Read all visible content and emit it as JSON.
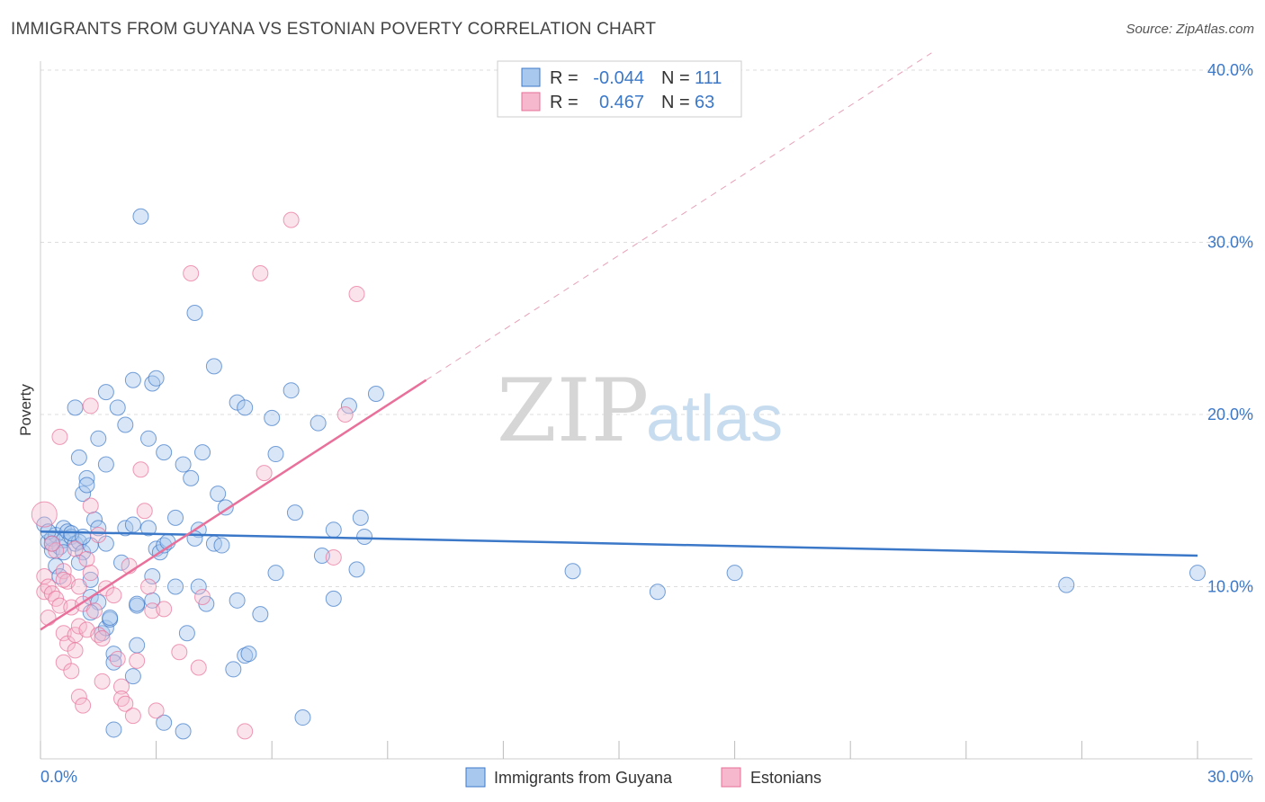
{
  "title": "IMMIGRANTS FROM GUYANA VS ESTONIAN POVERTY CORRELATION CHART",
  "source": "Source: ZipAtlas.com",
  "watermark": {
    "zip": "ZIP",
    "atlas": "atlas"
  },
  "colors": {
    "blue": "#3c78c8",
    "blue_fill": "#a9c8ee",
    "pink": "#e8709a",
    "pink_fill": "#f5b8cc"
  },
  "legend_top": {
    "rows": [
      {
        "r_label": "R =",
        "r_value": "-0.044",
        "n_label": "N =",
        "n_value": "111"
      },
      {
        "r_label": "R =",
        "r_value": "0.467",
        "n_label": "N =",
        "n_value": "63"
      }
    ]
  },
  "legend_bottom": {
    "items": [
      "Immigrants from Guyana",
      "Estonians"
    ]
  },
  "chart_data": {
    "type": "scatter",
    "ylabel": "Poverty",
    "xlim": [
      0,
      30
    ],
    "ylim": [
      0,
      40
    ],
    "x_ticks": [
      0,
      3,
      6,
      9,
      12,
      15,
      18,
      21,
      24,
      27,
      30
    ],
    "x_tick_labels": [
      "0.0%",
      "30.0%"
    ],
    "y_ticks": [
      10,
      20,
      30,
      40
    ],
    "y_tick_labels": [
      "10.0%",
      "20.0%",
      "30.0%",
      "40.0%"
    ],
    "grid": true,
    "series": [
      {
        "name": "Immigrants from Guyana",
        "color": "#3c78c8",
        "points": [
          [
            0.1,
            13.6
          ],
          [
            0.2,
            12.6
          ],
          [
            0.3,
            12.1
          ],
          [
            0.3,
            12.8
          ],
          [
            0.4,
            13.0
          ],
          [
            0.5,
            12.3
          ],
          [
            0.6,
            13.4
          ],
          [
            0.6,
            12.7
          ],
          [
            0.7,
            13.2
          ],
          [
            0.8,
            12.9
          ],
          [
            0.9,
            12.5
          ],
          [
            1.0,
            12.6
          ],
          [
            1.1,
            12.0
          ],
          [
            0.4,
            11.2
          ],
          [
            0.5,
            10.6
          ],
          [
            1.0,
            11.4
          ],
          [
            1.3,
            12.4
          ],
          [
            0.9,
            20.4
          ],
          [
            1.0,
            17.5
          ],
          [
            1.1,
            15.4
          ],
          [
            1.2,
            16.3
          ],
          [
            1.2,
            15.9
          ],
          [
            1.4,
            13.9
          ],
          [
            1.5,
            13.4
          ],
          [
            1.5,
            18.6
          ],
          [
            1.7,
            17.1
          ],
          [
            1.7,
            21.3
          ],
          [
            1.7,
            12.5
          ],
          [
            2.0,
            20.4
          ],
          [
            2.1,
            11.4
          ],
          [
            1.3,
            10.4
          ],
          [
            1.3,
            9.4
          ],
          [
            1.5,
            9.1
          ],
          [
            1.3,
            8.5
          ],
          [
            1.6,
            7.3
          ],
          [
            1.7,
            7.6
          ],
          [
            1.8,
            8.1
          ],
          [
            1.8,
            8.2
          ],
          [
            1.9,
            6.1
          ],
          [
            1.9,
            5.6
          ],
          [
            2.2,
            13.4
          ],
          [
            2.2,
            19.4
          ],
          [
            2.4,
            13.6
          ],
          [
            2.4,
            22.0
          ],
          [
            2.5,
            8.9
          ],
          [
            2.5,
            9.0
          ],
          [
            2.5,
            6.6
          ],
          [
            2.4,
            4.8
          ],
          [
            2.6,
            31.5
          ],
          [
            2.8,
            13.4
          ],
          [
            2.8,
            18.6
          ],
          [
            2.9,
            21.8
          ],
          [
            3.0,
            22.1
          ],
          [
            3.0,
            12.2
          ],
          [
            3.1,
            12.0
          ],
          [
            3.2,
            17.8
          ],
          [
            3.2,
            12.4
          ],
          [
            3.3,
            12.6
          ],
          [
            2.9,
            10.6
          ],
          [
            2.9,
            9.2
          ],
          [
            3.5,
            14.0
          ],
          [
            3.5,
            10.0
          ],
          [
            3.7,
            17.1
          ],
          [
            3.8,
            7.3
          ],
          [
            3.9,
            16.3
          ],
          [
            4.0,
            25.9
          ],
          [
            4.1,
            13.3
          ],
          [
            4.1,
            10.0
          ],
          [
            4.2,
            17.8
          ],
          [
            4.3,
            9.0
          ],
          [
            4.5,
            12.5
          ],
          [
            4.5,
            22.8
          ],
          [
            4.6,
            15.4
          ],
          [
            4.7,
            12.4
          ],
          [
            4.8,
            14.6
          ],
          [
            5.0,
            5.2
          ],
          [
            5.1,
            9.2
          ],
          [
            5.1,
            20.7
          ],
          [
            5.3,
            20.4
          ],
          [
            5.3,
            6.0
          ],
          [
            5.4,
            6.1
          ],
          [
            5.7,
            8.4
          ],
          [
            6.0,
            19.8
          ],
          [
            6.1,
            10.8
          ],
          [
            6.1,
            17.7
          ],
          [
            6.5,
            21.4
          ],
          [
            6.6,
            14.3
          ],
          [
            6.8,
            2.4
          ],
          [
            7.2,
            19.5
          ],
          [
            7.3,
            11.8
          ],
          [
            7.6,
            13.3
          ],
          [
            7.6,
            9.3
          ],
          [
            8.0,
            20.5
          ],
          [
            8.2,
            11.0
          ],
          [
            8.3,
            14.0
          ],
          [
            8.4,
            12.9
          ],
          [
            8.7,
            21.2
          ],
          [
            3.2,
            2.1
          ],
          [
            3.7,
            1.6
          ],
          [
            1.9,
            1.7
          ],
          [
            13.8,
            10.9
          ],
          [
            16.0,
            9.7
          ],
          [
            18.0,
            10.8
          ],
          [
            26.6,
            10.1
          ],
          [
            30.0,
            10.8
          ],
          [
            0.2,
            13.2
          ],
          [
            0.3,
            12.5
          ],
          [
            0.6,
            12.0
          ],
          [
            0.8,
            13.1
          ],
          [
            1.1,
            12.9
          ],
          [
            4.0,
            12.8
          ]
        ]
      },
      {
        "name": "Estonians",
        "color": "#e8709a",
        "points": [
          [
            0.1,
            14.2
          ],
          [
            0.1,
            10.6
          ],
          [
            0.1,
            9.7
          ],
          [
            0.2,
            8.2
          ],
          [
            0.2,
            10.0
          ],
          [
            0.3,
            9.6
          ],
          [
            0.4,
            12.1
          ],
          [
            0.4,
            9.3
          ],
          [
            0.5,
            18.7
          ],
          [
            0.5,
            8.9
          ],
          [
            0.6,
            10.9
          ],
          [
            0.6,
            7.3
          ],
          [
            0.6,
            5.6
          ],
          [
            0.7,
            10.3
          ],
          [
            0.7,
            6.7
          ],
          [
            0.8,
            8.8
          ],
          [
            0.8,
            5.1
          ],
          [
            0.9,
            7.2
          ],
          [
            0.9,
            6.3
          ],
          [
            1.0,
            7.7
          ],
          [
            1.0,
            10.0
          ],
          [
            1.0,
            3.6
          ],
          [
            1.1,
            9.0
          ],
          [
            1.1,
            3.1
          ],
          [
            1.2,
            7.5
          ],
          [
            1.2,
            11.6
          ],
          [
            1.3,
            20.5
          ],
          [
            1.3,
            14.7
          ],
          [
            1.3,
            10.8
          ],
          [
            1.4,
            8.6
          ],
          [
            1.5,
            7.2
          ],
          [
            1.6,
            7.0
          ],
          [
            1.6,
            4.5
          ],
          [
            1.7,
            9.9
          ],
          [
            1.9,
            9.5
          ],
          [
            2.0,
            5.8
          ],
          [
            2.1,
            4.2
          ],
          [
            2.1,
            3.5
          ],
          [
            2.2,
            3.2
          ],
          [
            2.3,
            11.2
          ],
          [
            2.4,
            2.5
          ],
          [
            2.5,
            5.7
          ],
          [
            2.6,
            16.8
          ],
          [
            2.7,
            14.4
          ],
          [
            2.8,
            10.0
          ],
          [
            2.9,
            8.6
          ],
          [
            3.0,
            2.8
          ],
          [
            3.2,
            8.7
          ],
          [
            3.6,
            6.2
          ],
          [
            3.9,
            28.2
          ],
          [
            4.1,
            5.3
          ],
          [
            4.2,
            9.4
          ],
          [
            5.3,
            1.6
          ],
          [
            5.7,
            28.2
          ],
          [
            5.8,
            16.6
          ],
          [
            6.5,
            31.3
          ],
          [
            7.6,
            11.7
          ],
          [
            7.9,
            20.0
          ],
          [
            8.2,
            27.0
          ],
          [
            1.5,
            13.0
          ],
          [
            0.3,
            12.5
          ],
          [
            0.6,
            10.4
          ],
          [
            0.9,
            12.2
          ]
        ]
      }
    ],
    "trendlines": [
      {
        "series": "Immigrants from Guyana",
        "x": [
          0,
          30
        ],
        "y": [
          13.2,
          11.8
        ]
      },
      {
        "series": "Estonians",
        "x": [
          0,
          10
        ],
        "y": [
          7.5,
          22.0
        ]
      }
    ]
  }
}
